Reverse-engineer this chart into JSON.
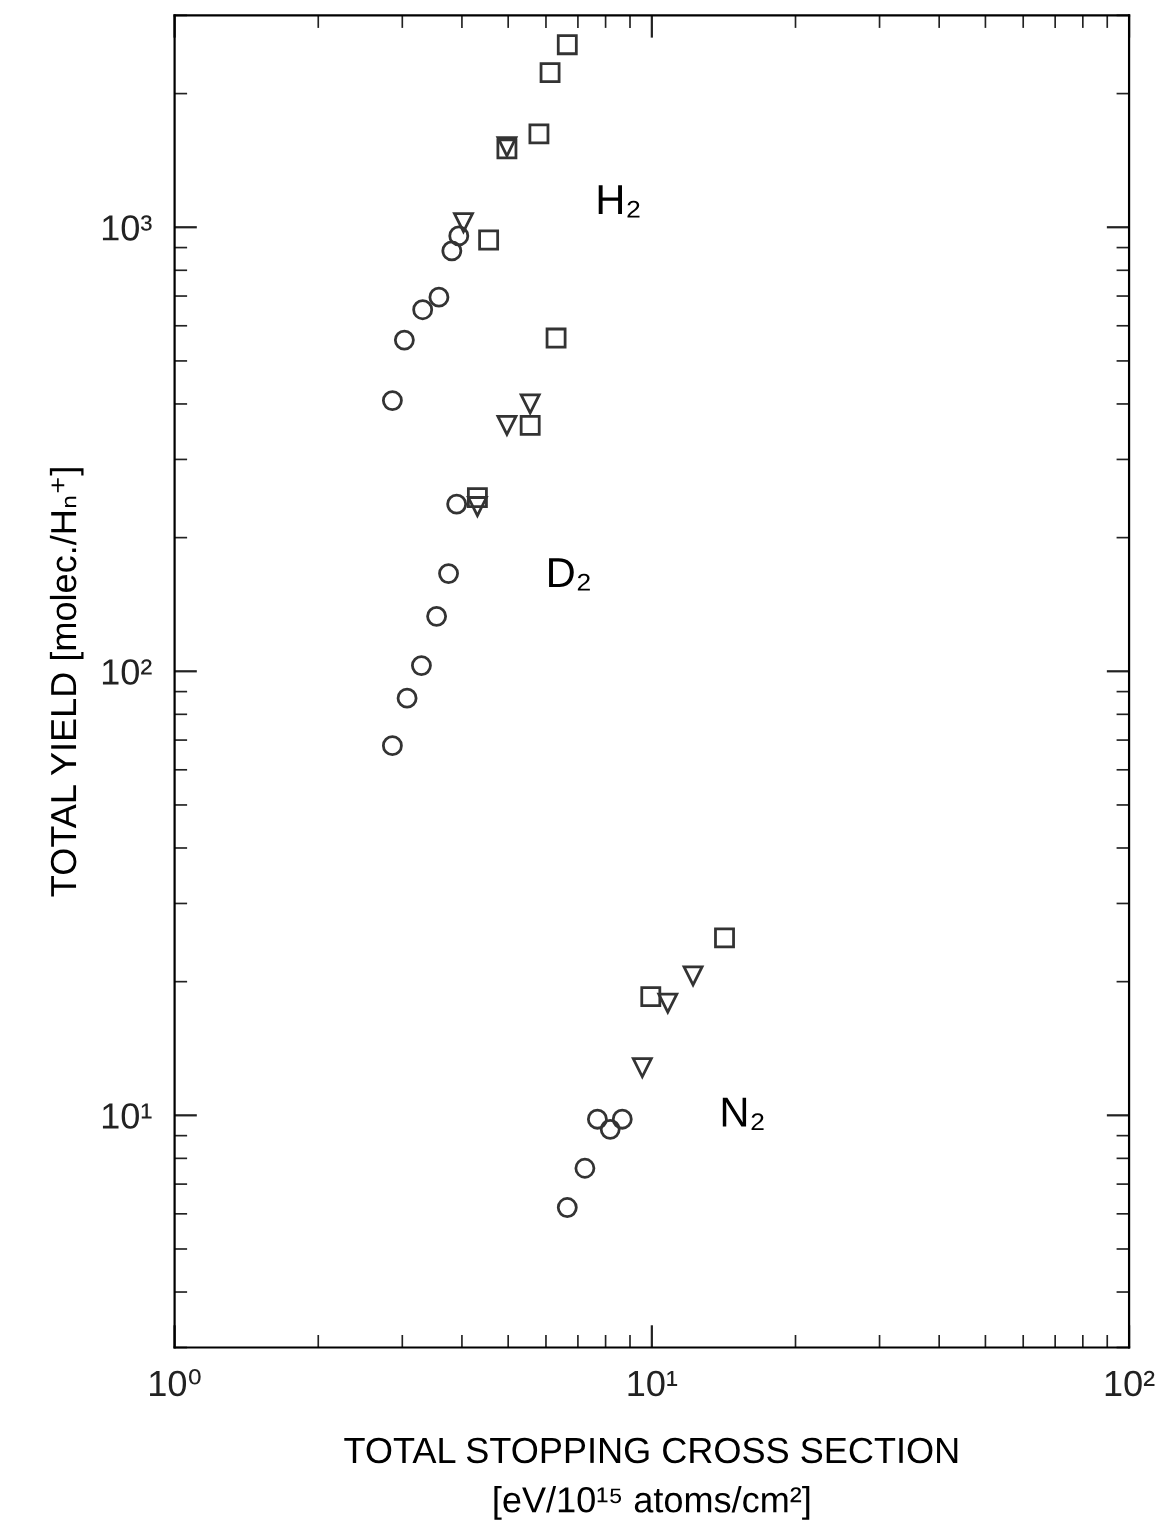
{
  "chart_data": {
    "type": "scatter",
    "xlabel": "TOTAL STOPPING CROSS SECTION\n[eV/10¹⁵ atoms/cm²]",
    "ylabel": "TOTAL YIELD [molec./Hₙ⁺]",
    "log": "xy",
    "grid": false,
    "xlim": [
      1,
      100
    ],
    "xticks": [
      {
        "value": 1,
        "label": "10⁰"
      },
      {
        "value": 10,
        "label": "10¹"
      },
      {
        "value": 100,
        "label": "10²"
      }
    ],
    "ylim": [
      3,
      3000
    ],
    "yticks": [
      {
        "value": 10,
        "label": "10¹"
      },
      {
        "value": 100,
        "label": "10²"
      },
      {
        "value": 1000,
        "label": "10³"
      }
    ],
    "annotations": [
      "H₂",
      "D₂",
      "N₂"
    ],
    "series": [
      {
        "marker": "circle",
        "color": "#333333",
        "x": [
          2.86,
          3.07,
          3.29,
          3.54,
          3.75,
          3.9,
          2.86,
          3.03,
          3.31,
          3.58,
          3.81,
          3.94,
          6.65,
          7.24,
          7.69,
          8.18,
          8.67
        ],
        "values": [
          68,
          87,
          103,
          133,
          166,
          238,
          407,
          557,
          652,
          696,
          885,
          956,
          6.2,
          7.6,
          9.8,
          9.3,
          9.8
        ]
      },
      {
        "marker": "triangle",
        "color": "#333333",
        "x": [
          4.03,
          4.97,
          4.97,
          5.56,
          4.31,
          9.55,
          10.8,
          12.2
        ],
        "values": [
          1024,
          1518,
          358,
          400,
          235,
          12.8,
          17.9,
          20.6
        ]
      },
      {
        "marker": "square",
        "color": "#333333",
        "x": [
          6.65,
          6.12,
          5.8,
          4.97,
          4.55,
          6.3,
          5.56,
          4.31,
          9.95,
          14.2
        ],
        "values": [
          2577,
          2230,
          1623,
          1502,
          936,
          563,
          358,
          246,
          18.5,
          25.1
        ]
      }
    ]
  }
}
